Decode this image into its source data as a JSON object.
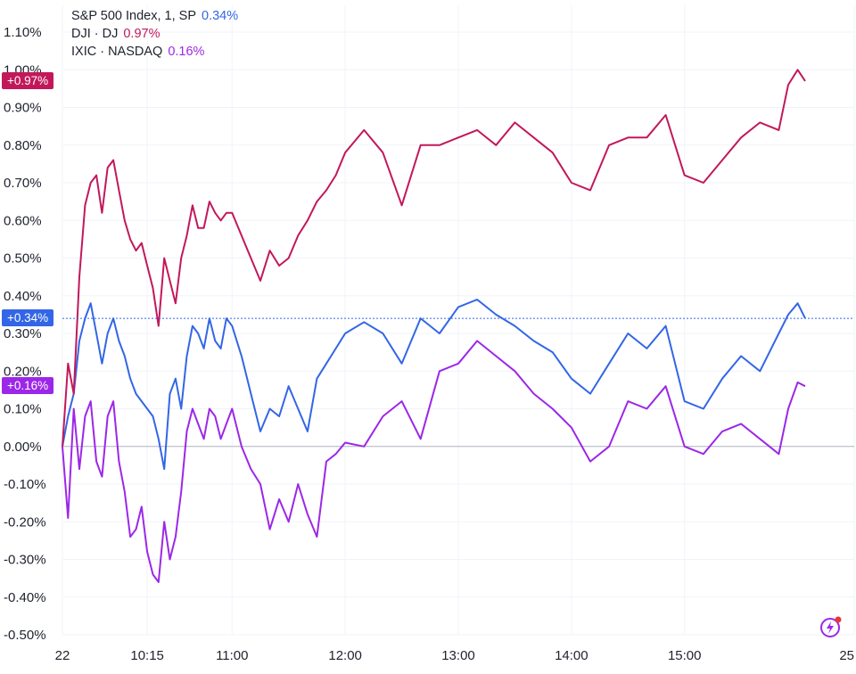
{
  "legend": [
    {
      "name": "S&P 500 Index, 1, SP",
      "value": "0.34%",
      "color": "#3366e6"
    },
    {
      "name": "DJI · DJ",
      "value": "0.97%",
      "color": "#c2185b"
    },
    {
      "name": "IXIC · NASDAQ",
      "value": "0.16%",
      "color": "#9c27e8"
    }
  ],
  "badges": {
    "dji": {
      "label": "+0.97%",
      "color": "#c2185b",
      "value": 0.97
    },
    "spx": {
      "label": "+0.34%",
      "color": "#3366e6",
      "value": 0.34
    },
    "ixic": {
      "label": "+0.16%",
      "color": "#9c27e8",
      "value": 0.16
    }
  },
  "chart_data": {
    "type": "line",
    "title": "",
    "xlabel": "",
    "ylabel": "",
    "ylim": [
      -0.5,
      1.1
    ],
    "yticks": [
      -0.5,
      -0.4,
      -0.3,
      -0.2,
      -0.1,
      0.0,
      0.1,
      0.2,
      0.3,
      0.4,
      0.5,
      0.6,
      0.7,
      0.8,
      0.9,
      1.0,
      1.1
    ],
    "ytick_labels": [
      "-0.50%",
      "-0.40%",
      "-0.30%",
      "-0.20%",
      "-0.10%",
      "0.00%",
      "0.10%",
      "0.20%",
      "0.30%",
      "0.40%",
      "0.50%",
      "0.60%",
      "0.70%",
      "0.80%",
      "0.90%",
      "1.00%",
      "1.10%"
    ],
    "xlim": [
      "09:30",
      "16:30"
    ],
    "xticks": [
      "09:30",
      "10:15",
      "11:00",
      "12:00",
      "13:00",
      "14:00",
      "15:00",
      "16:30"
    ],
    "xtick_labels": [
      "22",
      "10:15",
      "11:00",
      "12:00",
      "13:00",
      "14:00",
      "15:00",
      "25"
    ],
    "grid": true,
    "legend_position": "top-left",
    "series": [
      {
        "name": "S&P 500 Index, 1, SP",
        "color": "#3366e6",
        "x": [
          "09:30",
          "09:33",
          "09:36",
          "09:39",
          "09:42",
          "09:45",
          "09:48",
          "09:51",
          "09:54",
          "09:57",
          "10:00",
          "10:03",
          "10:06",
          "10:09",
          "10:12",
          "10:15",
          "10:18",
          "10:21",
          "10:24",
          "10:27",
          "10:30",
          "10:33",
          "10:36",
          "10:39",
          "10:42",
          "10:45",
          "10:48",
          "10:51",
          "10:54",
          "10:57",
          "11:00",
          "11:05",
          "11:10",
          "11:15",
          "11:20",
          "11:25",
          "11:30",
          "11:35",
          "11:40",
          "11:45",
          "11:50",
          "11:55",
          "12:00",
          "12:10",
          "12:20",
          "12:30",
          "12:40",
          "12:50",
          "13:00",
          "13:10",
          "13:20",
          "13:30",
          "13:40",
          "13:50",
          "14:00",
          "14:10",
          "14:20",
          "14:30",
          "14:40",
          "14:50",
          "15:00",
          "15:10",
          "15:20",
          "15:30",
          "15:40",
          "15:50",
          "15:55",
          "16:00",
          "16:04"
        ],
        "values": [
          0.0,
          0.08,
          0.14,
          0.28,
          0.34,
          0.38,
          0.3,
          0.22,
          0.3,
          0.34,
          0.28,
          0.24,
          0.18,
          0.14,
          0.12,
          0.1,
          0.08,
          0.02,
          -0.06,
          0.14,
          0.18,
          0.1,
          0.24,
          0.32,
          0.3,
          0.26,
          0.34,
          0.28,
          0.26,
          0.34,
          0.32,
          0.24,
          0.14,
          0.04,
          0.1,
          0.08,
          0.16,
          0.1,
          0.04,
          0.18,
          0.22,
          0.26,
          0.3,
          0.33,
          0.3,
          0.22,
          0.34,
          0.3,
          0.37,
          0.39,
          0.35,
          0.32,
          0.28,
          0.25,
          0.18,
          0.14,
          0.22,
          0.3,
          0.26,
          0.32,
          0.12,
          0.1,
          0.18,
          0.24,
          0.2,
          0.3,
          0.35,
          0.38,
          0.34
        ]
      },
      {
        "name": "DJI · DJ",
        "color": "#c2185b",
        "x": [
          "09:30",
          "09:33",
          "09:36",
          "09:39",
          "09:42",
          "09:45",
          "09:48",
          "09:51",
          "09:54",
          "09:57",
          "10:00",
          "10:03",
          "10:06",
          "10:09",
          "10:12",
          "10:15",
          "10:18",
          "10:21",
          "10:24",
          "10:27",
          "10:30",
          "10:33",
          "10:36",
          "10:39",
          "10:42",
          "10:45",
          "10:48",
          "10:51",
          "10:54",
          "10:57",
          "11:00",
          "11:05",
          "11:10",
          "11:15",
          "11:20",
          "11:25",
          "11:30",
          "11:35",
          "11:40",
          "11:45",
          "11:50",
          "11:55",
          "12:00",
          "12:10",
          "12:20",
          "12:30",
          "12:40",
          "12:50",
          "13:00",
          "13:10",
          "13:20",
          "13:30",
          "13:40",
          "13:50",
          "14:00",
          "14:10",
          "14:20",
          "14:30",
          "14:40",
          "14:50",
          "15:00",
          "15:10",
          "15:20",
          "15:30",
          "15:40",
          "15:50",
          "15:55",
          "16:00",
          "16:04"
        ],
        "values": [
          0.0,
          0.22,
          0.14,
          0.45,
          0.64,
          0.7,
          0.72,
          0.62,
          0.74,
          0.76,
          0.68,
          0.6,
          0.55,
          0.52,
          0.54,
          0.48,
          0.42,
          0.32,
          0.5,
          0.44,
          0.38,
          0.5,
          0.56,
          0.64,
          0.58,
          0.58,
          0.65,
          0.62,
          0.6,
          0.62,
          0.62,
          0.56,
          0.5,
          0.44,
          0.52,
          0.48,
          0.5,
          0.56,
          0.6,
          0.65,
          0.68,
          0.72,
          0.78,
          0.84,
          0.78,
          0.64,
          0.8,
          0.8,
          0.82,
          0.84,
          0.8,
          0.86,
          0.82,
          0.78,
          0.7,
          0.68,
          0.8,
          0.82,
          0.82,
          0.88,
          0.72,
          0.7,
          0.76,
          0.82,
          0.86,
          0.84,
          0.96,
          1.0,
          0.97
        ]
      },
      {
        "name": "IXIC · NASDAQ",
        "color": "#9c27e8",
        "x": [
          "09:30",
          "09:33",
          "09:36",
          "09:39",
          "09:42",
          "09:45",
          "09:48",
          "09:51",
          "09:54",
          "09:57",
          "10:00",
          "10:03",
          "10:06",
          "10:09",
          "10:12",
          "10:15",
          "10:18",
          "10:21",
          "10:24",
          "10:27",
          "10:30",
          "10:33",
          "10:36",
          "10:39",
          "10:42",
          "10:45",
          "10:48",
          "10:51",
          "10:54",
          "10:57",
          "11:00",
          "11:05",
          "11:10",
          "11:15",
          "11:20",
          "11:25",
          "11:30",
          "11:35",
          "11:40",
          "11:45",
          "11:50",
          "11:55",
          "12:00",
          "12:10",
          "12:20",
          "12:30",
          "12:40",
          "12:50",
          "13:00",
          "13:10",
          "13:20",
          "13:30",
          "13:40",
          "13:50",
          "14:00",
          "14:10",
          "14:20",
          "14:30",
          "14:40",
          "14:50",
          "15:00",
          "15:10",
          "15:20",
          "15:30",
          "15:40",
          "15:50",
          "15:55",
          "16:00",
          "16:04"
        ],
        "values": [
          0.0,
          -0.19,
          0.1,
          -0.06,
          0.08,
          0.12,
          -0.04,
          -0.08,
          0.08,
          0.12,
          -0.04,
          -0.12,
          -0.24,
          -0.22,
          -0.16,
          -0.28,
          -0.34,
          -0.36,
          -0.2,
          -0.3,
          -0.24,
          -0.12,
          0.04,
          0.1,
          0.06,
          0.02,
          0.1,
          0.08,
          0.02,
          0.06,
          0.1,
          0.0,
          -0.06,
          -0.1,
          -0.22,
          -0.14,
          -0.2,
          -0.1,
          -0.18,
          -0.24,
          -0.04,
          -0.02,
          0.01,
          0.0,
          0.08,
          0.12,
          0.02,
          0.2,
          0.22,
          0.28,
          0.24,
          0.2,
          0.14,
          0.1,
          0.05,
          -0.04,
          0.0,
          0.12,
          0.1,
          0.16,
          0.0,
          -0.02,
          0.04,
          0.06,
          0.02,
          -0.02,
          0.1,
          0.17,
          0.16
        ]
      }
    ]
  }
}
